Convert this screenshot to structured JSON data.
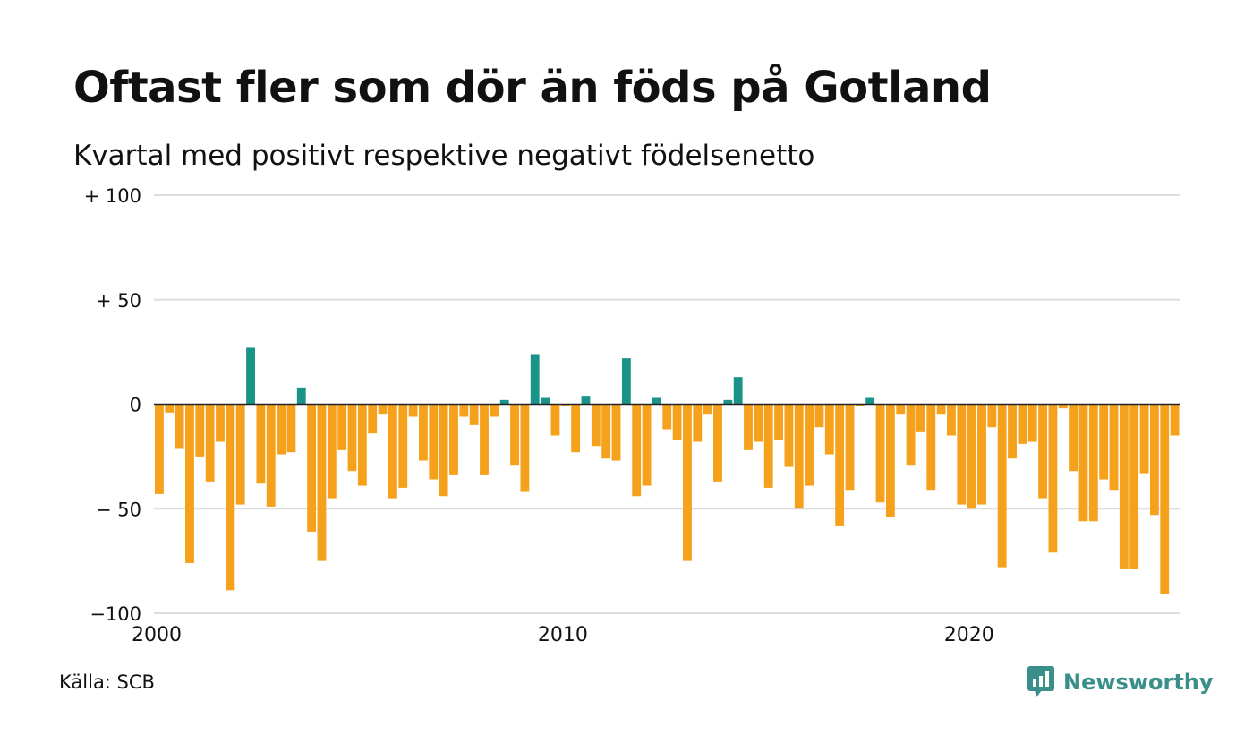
{
  "title": "Oftast fler som dör än föds på Gotland",
  "subtitle": "Kvartal med positivt respektive negativt födelsenetto",
  "source": "Källa: SCB",
  "brand": "Newsworthy",
  "colors": {
    "positive": "#1a9488",
    "negative": "#f5a11c",
    "brand": "#3a8f8a",
    "grid": "#dddddd",
    "zero": "#222222"
  },
  "chart_data": {
    "type": "bar",
    "ylim": [
      -100,
      100
    ],
    "yticks": [
      {
        "value": 100,
        "label": "+ 100"
      },
      {
        "value": 50,
        "label": "+  50"
      },
      {
        "value": 0,
        "label": "0"
      },
      {
        "value": -50,
        "label": "− 50"
      },
      {
        "value": -100,
        "label": "−100"
      }
    ],
    "xticks": [
      {
        "value": 2000,
        "label": "2000"
      },
      {
        "value": 2010,
        "label": "2010"
      },
      {
        "value": 2020,
        "label": "2020"
      }
    ],
    "xlim": [
      2000,
      2025.25
    ],
    "grid": true,
    "categories": [
      "2000K1",
      "2000K2",
      "2000K3",
      "2000K4",
      "2001K1",
      "2001K2",
      "2001K3",
      "2001K4",
      "2002K1",
      "2002K2",
      "2002K3",
      "2002K4",
      "2003K1",
      "2003K2",
      "2003K3",
      "2003K4",
      "2004K1",
      "2004K2",
      "2004K3",
      "2004K4",
      "2005K1",
      "2005K2",
      "2005K3",
      "2005K4",
      "2006K1",
      "2006K2",
      "2006K3",
      "2006K4",
      "2007K1",
      "2007K2",
      "2007K3",
      "2007K4",
      "2008K1",
      "2008K2",
      "2008K3",
      "2008K4",
      "2009K1",
      "2009K2",
      "2009K3",
      "2009K4",
      "2010K1",
      "2010K2",
      "2010K3",
      "2010K4",
      "2011K1",
      "2011K2",
      "2011K3",
      "2011K4",
      "2012K1",
      "2012K2",
      "2012K3",
      "2012K4",
      "2013K1",
      "2013K2",
      "2013K3",
      "2013K4",
      "2014K1",
      "2014K2",
      "2014K3",
      "2014K4",
      "2015K1",
      "2015K2",
      "2015K3",
      "2015K4",
      "2016K1",
      "2016K2",
      "2016K3",
      "2016K4",
      "2017K1",
      "2017K2",
      "2017K3",
      "2017K4",
      "2018K1",
      "2018K2",
      "2018K3",
      "2018K4",
      "2019K1",
      "2019K2",
      "2019K3",
      "2019K4",
      "2020K1",
      "2020K2",
      "2020K3",
      "2020K4",
      "2021K1",
      "2021K2",
      "2021K3",
      "2021K4",
      "2022K1",
      "2022K2",
      "2022K3",
      "2022K4",
      "2023K1",
      "2023K2",
      "2023K3",
      "2023K4",
      "2024K1",
      "2024K2",
      "2024K3",
      "2024K4",
      "2025K1"
    ],
    "values": [
      -43,
      -4,
      -21,
      -76,
      -25,
      -37,
      -18,
      -89,
      -48,
      27,
      -38,
      -49,
      -24,
      -23,
      8,
      -61,
      -75,
      -45,
      -22,
      -32,
      -39,
      -14,
      -5,
      -45,
      -40,
      -6,
      -27,
      -36,
      -44,
      -34,
      -6,
      -10,
      -34,
      -6,
      2,
      -29,
      -42,
      24,
      3,
      -15,
      -1,
      -23,
      4,
      -20,
      -26,
      -27,
      22,
      -44,
      -39,
      3,
      -12,
      -17,
      -75,
      -18,
      -5,
      -37,
      2,
      13,
      -22,
      -18,
      -40,
      -17,
      -30,
      -50,
      -39,
      -11,
      -24,
      -58,
      -41,
      -1,
      3,
      -47,
      -54,
      -5,
      -29,
      -13,
      -41,
      -5,
      -15,
      -48,
      -50,
      -48,
      -11,
      -78,
      -26,
      -19,
      -18,
      -45,
      -71,
      -2,
      -32,
      -56,
      -56,
      -36,
      -41,
      -79,
      -79,
      -33,
      -53,
      -91,
      -15
    ]
  }
}
